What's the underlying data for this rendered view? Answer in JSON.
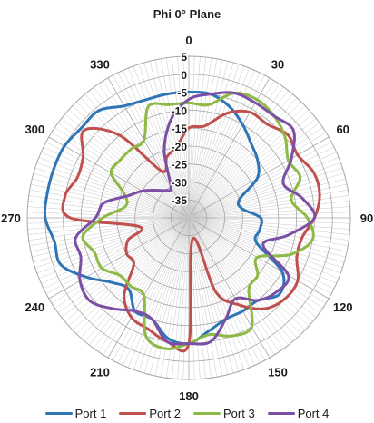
{
  "chart_data": {
    "type": "polar-line",
    "title": "Phi 0° Plane",
    "angle_ticks": [
      "0",
      "30",
      "60",
      "90",
      "120",
      "150",
      "180",
      "210",
      "240",
      "270",
      "300",
      "330"
    ],
    "radial_ticks": [
      "5",
      "0",
      "-5",
      "-10",
      "-15",
      "-20",
      "-25",
      "-30",
      "-35"
    ],
    "radial_range": [
      -40,
      5
    ],
    "grid": true,
    "legend_position": "bottom",
    "theta_deg": [
      0,
      10,
      20,
      30,
      40,
      50,
      60,
      70,
      80,
      90,
      100,
      110,
      120,
      130,
      140,
      150,
      160,
      170,
      180,
      190,
      200,
      210,
      220,
      230,
      240,
      250,
      260,
      270,
      280,
      290,
      300,
      310,
      320,
      330,
      340,
      350
    ],
    "series": [
      {
        "name": "Port 1",
        "color": "#2E75B6",
        "values": [
          -5,
          -5,
          -7,
          -10,
          -13,
          -15,
          -18,
          -25,
          -25,
          -20,
          -20,
          -20,
          -10,
          -7,
          -10,
          -10,
          -10,
          -8,
          -5,
          -6,
          -10,
          -10,
          -14,
          -12,
          -7,
          -2,
          -2,
          0,
          0,
          0,
          0,
          -1,
          -1,
          -4,
          -5,
          -5
        ]
      },
      {
        "name": "Port 2",
        "color": "#C0504D",
        "values": [
          -15,
          -14,
          -9,
          -6,
          -6,
          -4,
          -5,
          -3,
          -3,
          -5,
          -8,
          -8,
          -5,
          -5,
          -7,
          -12,
          -18,
          -34,
          -5,
          -5,
          -7,
          -8,
          -12,
          -20,
          -20,
          -22,
          -26,
          -7,
          -5,
          -7,
          -6,
          -2,
          -10,
          -25,
          -22,
          -20
        ]
      },
      {
        "name": "Port 3",
        "color": "#8DB944",
        "values": [
          -8,
          -8,
          -3,
          -2,
          -3,
          -5,
          -8,
          -7,
          -11,
          -7,
          -5,
          -10,
          -18,
          -15,
          -14,
          -5,
          -5,
          -7,
          -5,
          -3,
          -5,
          -15,
          -15,
          -15,
          -12,
          -12,
          -10,
          -16,
          -22,
          -21,
          -15,
          -15,
          -15,
          -15,
          -7,
          -8
        ]
      },
      {
        "name": "Port 4",
        "color": "#7B4FA6",
        "values": [
          -7,
          -5,
          -3,
          -3,
          -3,
          -2,
          -7,
          -12,
          -8,
          -5,
          -12,
          -18,
          -8,
          -8,
          -10,
          -14,
          -10,
          -5,
          -5,
          -5,
          -10,
          -10,
          -7,
          -4,
          -5,
          -8,
          -8,
          -14,
          -16,
          -22,
          -25,
          -28,
          -30,
          -30,
          -20,
          -12
        ]
      }
    ]
  }
}
